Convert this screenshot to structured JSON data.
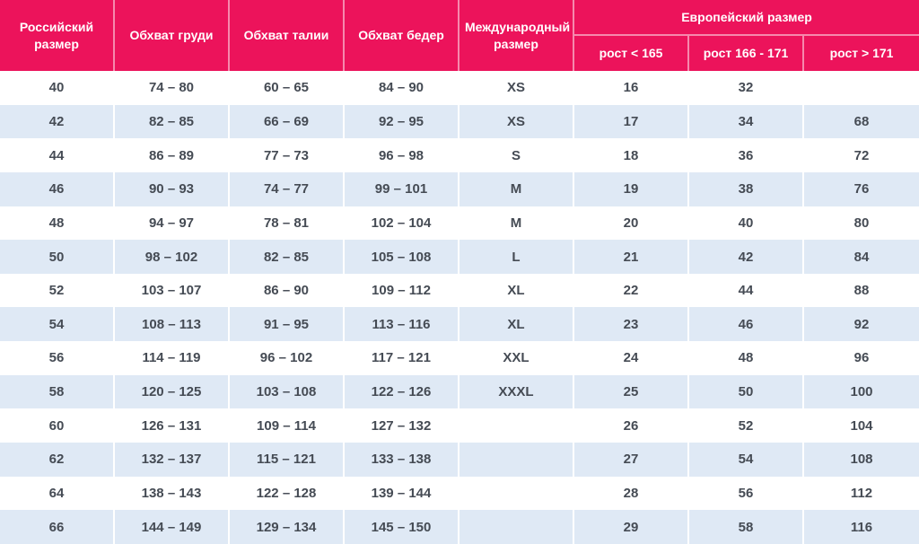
{
  "colors": {
    "header_bg": "#EC135B",
    "header_text": "#FFFFFF",
    "row_alt_bg": "#DFE9F5",
    "row_bg": "#FFFFFF",
    "body_text": "#454B54",
    "cell_divider": "#FFFFFF"
  },
  "chart_data": {
    "type": "table",
    "header": {
      "russian_size": "Российский размер",
      "chest": "Обхват груди",
      "waist": "Обхват талии",
      "hips": "Обхват бедер",
      "international_size": "Международный размер",
      "european_size": "Европейский размер",
      "height_lt_165": "рост < 165",
      "height_166_171": "рост 166 - 171",
      "height_gt_171": "рост > 171"
    },
    "columns": [
      "Российский размер",
      "Обхват груди",
      "Обхват талии",
      "Обхват бедер",
      "Международный размер",
      "Европейский размер / рост < 165",
      "Европейский размер / рост 166 - 171",
      "Европейский размер / рост > 171"
    ],
    "rows": [
      [
        "40",
        "74 – 80",
        "60 – 65",
        "84 – 90",
        "XS",
        "16",
        "32",
        ""
      ],
      [
        "42",
        "82 – 85",
        "66 – 69",
        "92 – 95",
        "XS",
        "17",
        "34",
        "68"
      ],
      [
        "44",
        "86 – 89",
        "77 – 73",
        "96 – 98",
        "S",
        "18",
        "36",
        "72"
      ],
      [
        "46",
        "90 – 93",
        "74 – 77",
        "99 – 101",
        "M",
        "19",
        "38",
        "76"
      ],
      [
        "48",
        "94 – 97",
        "78 – 81",
        "102 – 104",
        "M",
        "20",
        "40",
        "80"
      ],
      [
        "50",
        "98 – 102",
        "82 – 85",
        "105 – 108",
        "L",
        "21",
        "42",
        "84"
      ],
      [
        "52",
        "103 – 107",
        "86 – 90",
        "109 – 112",
        "XL",
        "22",
        "44",
        "88"
      ],
      [
        "54",
        "108 – 113",
        "91 – 95",
        "113 – 116",
        "XL",
        "23",
        "46",
        "92"
      ],
      [
        "56",
        "114 – 119",
        "96 – 102",
        "117 – 121",
        "XXL",
        "24",
        "48",
        "96"
      ],
      [
        "58",
        "120 – 125",
        "103 – 108",
        "122 – 126",
        "XXXL",
        "25",
        "50",
        "100"
      ],
      [
        "60",
        "126 – 131",
        "109 – 114",
        "127 – 132",
        "",
        "26",
        "52",
        "104"
      ],
      [
        "62",
        "132 – 137",
        "115 – 121",
        "133 – 138",
        "",
        "27",
        "54",
        "108"
      ],
      [
        "64",
        "138 – 143",
        "122 – 128",
        "139 – 144",
        "",
        "28",
        "56",
        "112"
      ],
      [
        "66",
        "144 – 149",
        "129 – 134",
        "145 – 150",
        "",
        "29",
        "58",
        "116"
      ]
    ]
  }
}
